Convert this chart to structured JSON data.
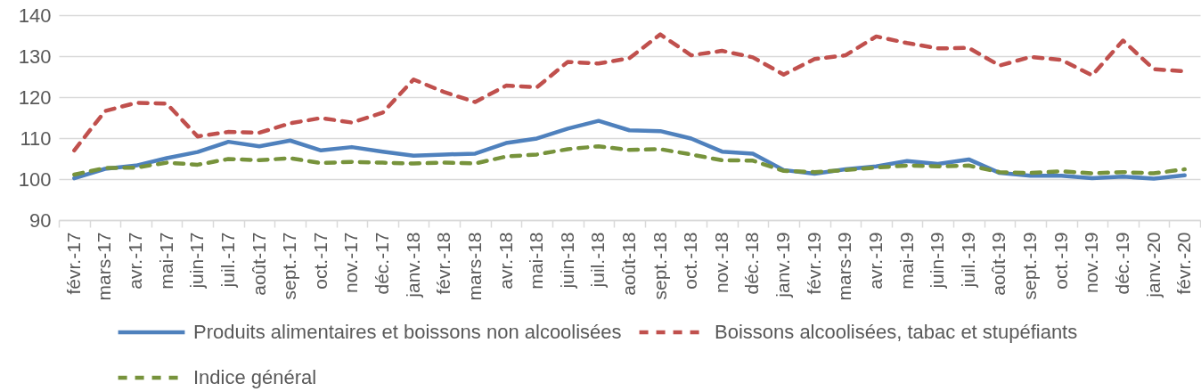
{
  "chart_data": {
    "type": "line",
    "categories": [
      "févr.-17",
      "mars-17",
      "avr.-17",
      "mai-17",
      "juin-17",
      "juil.-17",
      "août-17",
      "sept.-17",
      "oct.-17",
      "nov.-17",
      "déc.-17",
      "janv.-18",
      "févr.-18",
      "mars-18",
      "avr.-18",
      "mai-18",
      "juin-18",
      "juil.-18",
      "août-18",
      "sept.-18",
      "oct.-18",
      "nov.-18",
      "déc.-18",
      "janv.-19",
      "févr.-19",
      "mars-19",
      "avr.-19",
      "mai-19",
      "juin-19",
      "juil.-19",
      "août-19",
      "sept.-19",
      "oct.-19",
      "nov.-19",
      "déc.-19",
      "janv.-20",
      "févr.-20"
    ],
    "series": [
      {
        "name": "Produits alimentaires et boissons non alcoolisées",
        "color": "#4f81bd",
        "line_style": "solid",
        "values": [
          100.2,
          102.5,
          103.3,
          105.1,
          106.6,
          109.1,
          108.0,
          109.4,
          107.0,
          107.8,
          106.7,
          105.7,
          106.0,
          106.2,
          108.8,
          109.9,
          112.3,
          114.2,
          111.9,
          111.7,
          109.9,
          106.7,
          106.2,
          102.2,
          101.3,
          102.4,
          103.1,
          104.4,
          103.7,
          104.8,
          101.5,
          100.8,
          100.8,
          100.2,
          100.6,
          100.1,
          100.9
        ]
      },
      {
        "name": "Boissons alcoolisées, tabac et stupéfiants",
        "color": "#c0504d",
        "line_style": "dashed",
        "values": [
          107.0,
          116.6,
          118.6,
          118.4,
          110.4,
          111.5,
          111.3,
          113.6,
          114.9,
          113.8,
          116.2,
          124.3,
          121.2,
          118.8,
          122.8,
          122.4,
          128.6,
          128.2,
          129.5,
          135.3,
          130.2,
          131.3,
          129.7,
          125.5,
          129.3,
          130.2,
          134.8,
          133.2,
          131.9,
          132.0,
          127.7,
          129.8,
          129.1,
          125.3,
          133.8,
          126.8,
          126.3
        ]
      },
      {
        "name": "Indice général",
        "color": "#77933c",
        "line_style": "dashed",
        "values": [
          101.1,
          102.7,
          102.8,
          104.0,
          103.5,
          104.9,
          104.6,
          105.1,
          103.9,
          104.2,
          104.0,
          103.8,
          104.0,
          103.8,
          105.5,
          106.0,
          107.3,
          108.0,
          107.1,
          107.3,
          106.0,
          104.6,
          104.5,
          102.0,
          101.7,
          102.2,
          102.8,
          103.3,
          103.1,
          103.3,
          101.7,
          101.5,
          101.9,
          101.4,
          101.7,
          101.4,
          102.4
        ]
      }
    ],
    "ylim": [
      90,
      140
    ],
    "yticks": [
      90,
      100,
      110,
      120,
      130,
      140
    ],
    "grid": "y",
    "legend": "bottom"
  }
}
